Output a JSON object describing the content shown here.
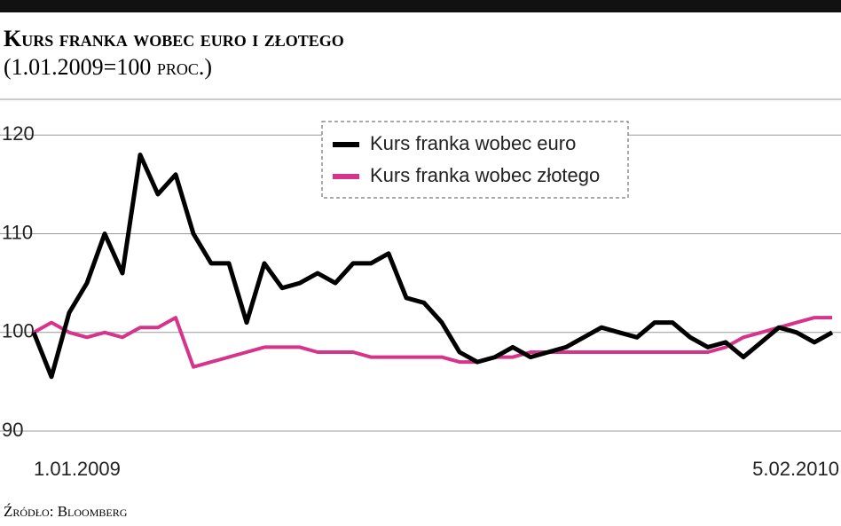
{
  "chart_data": {
    "type": "line",
    "title": "Kurs franka wobec euro i złotego",
    "subtitle": "(1.01.2009=100 proc.)",
    "source": "Źródło: Bloomberg",
    "categories": [
      "1.01.2009",
      null,
      null,
      null,
      null,
      null,
      null,
      null,
      null,
      null,
      null,
      null,
      null,
      null,
      null,
      null,
      null,
      null,
      null,
      null,
      null,
      null,
      null,
      null,
      null,
      null,
      null,
      null,
      null,
      null,
      null,
      null,
      null,
      null,
      null,
      null,
      null,
      null,
      null,
      null,
      null,
      null,
      null,
      null,
      null,
      "5.02.2010"
    ],
    "series": [
      {
        "name": "Kurs franka wobec euro",
        "color": "#000000",
        "values": [
          100,
          95.5,
          102,
          105,
          110,
          106,
          118,
          114,
          116,
          110,
          107,
          107,
          101,
          107,
          104.5,
          105,
          106,
          105,
          107,
          107,
          108,
          103.5,
          103,
          101,
          98,
          97,
          97.5,
          98.5,
          97.5,
          98,
          98.5,
          99.5,
          100.5,
          100,
          99.5,
          101,
          101,
          99.5,
          98.5,
          99,
          97.5,
          99,
          100.5,
          100,
          99,
          100
        ]
      },
      {
        "name": "Kurs franka wobec złotego",
        "color": "#d6338a",
        "values": [
          100,
          101,
          100,
          99.5,
          100,
          99.5,
          100.5,
          100.5,
          101.5,
          96.5,
          97,
          97.5,
          98,
          98.5,
          98.5,
          98.5,
          98,
          98,
          98,
          97.5,
          97.5,
          97.5,
          97.5,
          97.5,
          97,
          97,
          97.5,
          97.5,
          98,
          98,
          98,
          98,
          98,
          98,
          98,
          98,
          98,
          98,
          98,
          98.5,
          99.5,
          100,
          100.5,
          101,
          101.5,
          101.5
        ]
      }
    ],
    "ylim": [
      90,
      122
    ],
    "yticks": [
      90,
      100,
      110,
      120
    ],
    "grid": true
  }
}
